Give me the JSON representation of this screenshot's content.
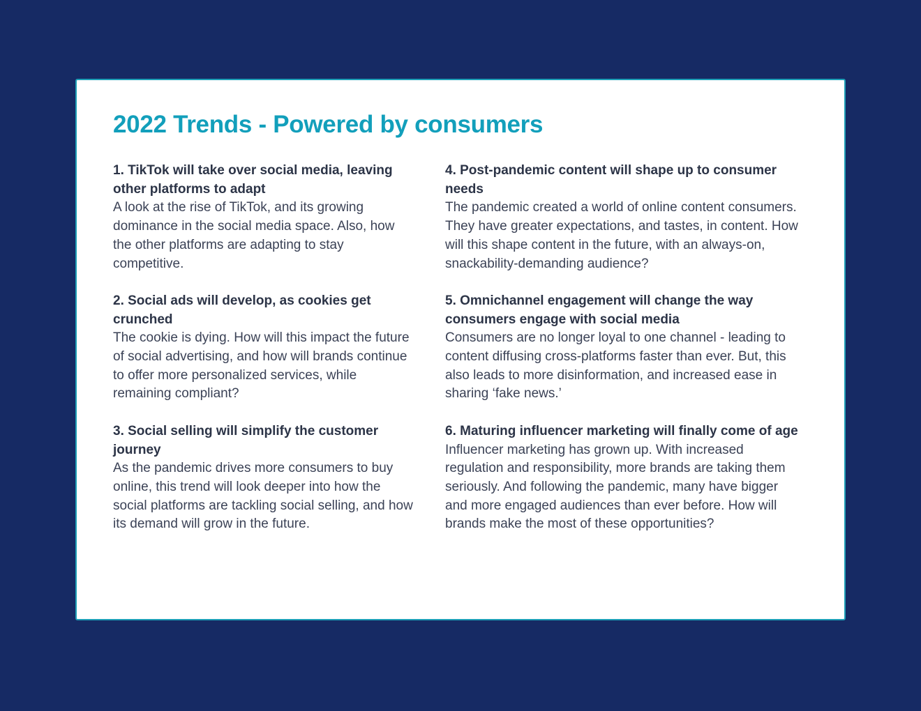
{
  "title": "2022 Trends - Powered by consumers",
  "trends": [
    {
      "heading": "1. TikTok will take over social media, leaving other platforms to adapt",
      "body": "A look at the rise of TikTok, and its growing dominance in the social media space. Also, how the other platforms are adapting to stay competitive."
    },
    {
      "heading": "2. Social ads will develop, as cookies get crunched",
      "body": "The cookie is dying. How will this impact the future of social advertising, and how will brands continue to offer more personalized services, while remaining compliant?"
    },
    {
      "heading": "3. Social selling will simplify the customer journey",
      "body": "As the pandemic drives more consumers to buy online, this trend will look deeper into how the social platforms are tackling social selling, and how its demand will grow in the future."
    },
    {
      "heading": "4. Post-pandemic content will shape up to consumer needs",
      "body": "The pandemic created a world of online content consumers. They have greater expectations, and tastes, in content. How will this shape content in the future, with an always-on, snackability-demanding audience?"
    },
    {
      "heading": "5. Omnichannel engagement will change the way consumers engage with social media",
      "body": "Consumers are no longer loyal to one channel - leading to content diffusing cross-platforms faster than ever. But, this also leads to more disinformation, and increased ease in sharing ‘fake news.’"
    },
    {
      "heading": "6. Maturing influencer marketing will finally come of age",
      "body": "Influencer marketing has grown up. With increased regulation and responsibility, more brands are taking them seriously. And following the pandemic, many have bigger and more engaged audiences than ever before. How will brands make the most of these opportunities?"
    }
  ],
  "colors": {
    "background": "#162a64",
    "accent": "#129fbb",
    "text": "#3b4256"
  }
}
